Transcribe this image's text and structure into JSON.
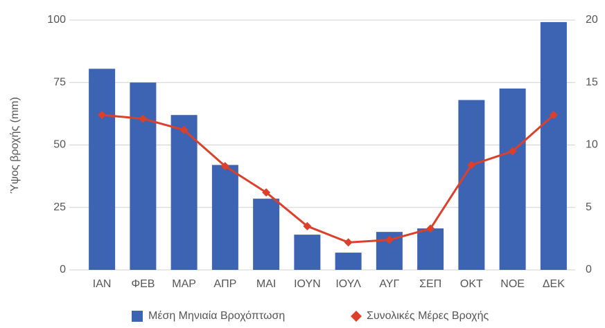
{
  "chart_data": {
    "type": "bar",
    "ylabel": "Ύψος βροχής (mm)",
    "categories": [
      "ΙΑΝ",
      "ΦΕΒ",
      "ΜΑΡ",
      "ΑΠΡ",
      "ΜΑΙ",
      "ΙΟΥΝ",
      "ΙΟΥΛ",
      "ΑΥΓ",
      "ΣΕΠ",
      "ΟΚΤ",
      "ΝΟΕ",
      "ΔΕΚ"
    ],
    "series": [
      {
        "name": "Μέση Μηνιαία Βροχόπτωση",
        "type": "bar",
        "color": "#3d64b3",
        "values": [
          80.5,
          75,
          62,
          42,
          28.5,
          14.1,
          6.9,
          15.2,
          16.6,
          68,
          72.6,
          99.2
        ]
      },
      {
        "name": "Συνολικές Μέρες Βροχής",
        "type": "line",
        "axis": "y2",
        "color": "#dc3f2a",
        "values": [
          12.4,
          12.1,
          11.2,
          8.3,
          6.2,
          3.5,
          2.2,
          2.4,
          3.3,
          8.4,
          9.5,
          12.4
        ]
      }
    ],
    "ylim": [
      0,
      100
    ],
    "yticks": [
      0,
      25,
      50,
      75,
      100
    ],
    "y2lim": [
      0,
      20
    ],
    "y2ticks": [
      0,
      5,
      10,
      15,
      20
    ],
    "grid": true,
    "legend": "bottom"
  }
}
